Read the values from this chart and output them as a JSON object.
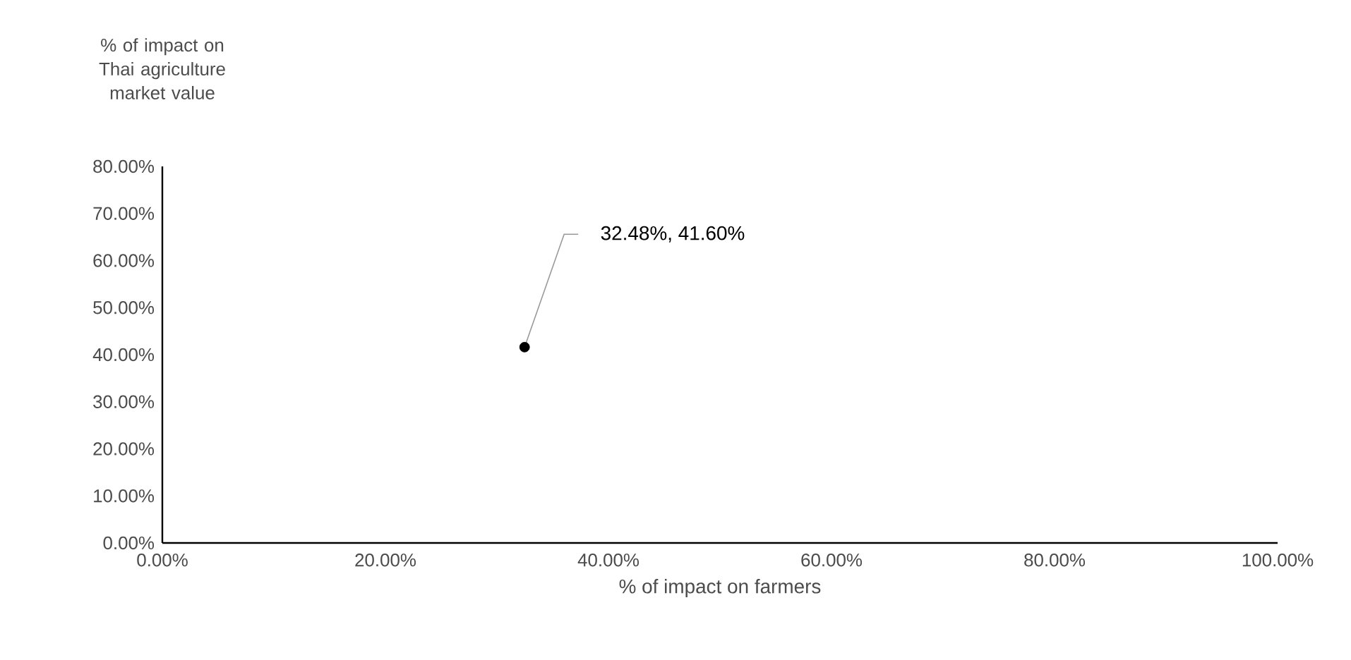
{
  "chart_data": {
    "type": "scatter",
    "xlabel": "% of impact on farmers",
    "ylabel": "% of impact on Thai agriculture market value",
    "x": [
      32.48
    ],
    "values": [
      41.6
    ],
    "color": "#000000",
    "marker": "circle",
    "xlim": [
      0,
      100
    ],
    "ylim": [
      0,
      80
    ],
    "xticks": [
      {
        "value": 0,
        "label": "0.00%"
      },
      {
        "value": 20,
        "label": "20.00%"
      },
      {
        "value": 40,
        "label": "40.00%"
      },
      {
        "value": 60,
        "label": "60.00%"
      },
      {
        "value": 80,
        "label": "80.00%"
      },
      {
        "value": 100,
        "label": "100.00%"
      }
    ],
    "yticks": [
      {
        "value": 0,
        "label": "0.00%"
      },
      {
        "value": 10,
        "label": "10.00%"
      },
      {
        "value": 20,
        "label": "20.00%"
      },
      {
        "value": 30,
        "label": "30.00%"
      },
      {
        "value": 40,
        "label": "40.00%"
      },
      {
        "value": 50,
        "label": "50.00%"
      },
      {
        "value": 60,
        "label": "60.00%"
      },
      {
        "value": 70,
        "label": "70.00%"
      },
      {
        "value": 80,
        "label": "80.00%"
      }
    ],
    "annotations": [
      {
        "text": "32.48%, 41.60%",
        "x": 32.48,
        "y": 41.6
      }
    ]
  }
}
